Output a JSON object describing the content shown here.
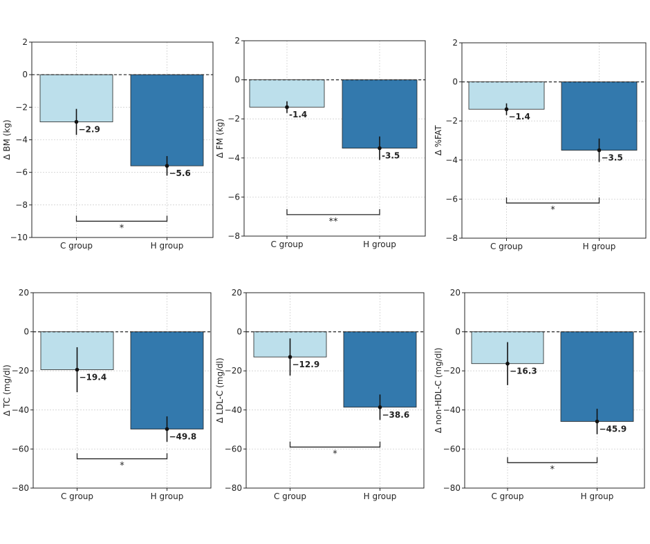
{
  "colors": {
    "c_group": "#bcdfeb",
    "h_group": "#3379ad",
    "axis": "#222222",
    "grid": "#cfcfcf",
    "point": "#111111"
  },
  "chart_data": [
    {
      "type": "bar",
      "categories": [
        "C group",
        "H group"
      ],
      "values": [
        -2.9,
        -5.6
      ],
      "value_labels": [
        "−2.9",
        "−5.6"
      ],
      "errors": [
        0.8,
        0.6
      ],
      "ylabel": "Δ BM (kg)",
      "ylim": [
        -10,
        2
      ],
      "yticks": [
        2,
        0,
        -2,
        -4,
        -6,
        -8,
        -10
      ],
      "ytick_labels": [
        "2",
        "0",
        "−2",
        "−4",
        "−6",
        "−8",
        "−10"
      ],
      "grid": true,
      "significance": {
        "label": "*",
        "level": -9.0
      }
    },
    {
      "type": "bar",
      "categories": [
        "C group",
        "H group"
      ],
      "values": [
        -1.4,
        -3.5
      ],
      "value_labels": [
        "-1.4",
        "-3.5"
      ],
      "errors": [
        0.3,
        0.6
      ],
      "ylabel": "Δ FM (kg)",
      "ylim": [
        -8,
        2
      ],
      "yticks": [
        2,
        0,
        -2,
        -4,
        -6,
        -8
      ],
      "ytick_labels": [
        "2",
        "0",
        "−2",
        "−4",
        "−6",
        "−8"
      ],
      "grid": true,
      "significance": {
        "label": "**",
        "level": -6.9
      }
    },
    {
      "type": "bar",
      "categories": [
        "C group",
        "H group"
      ],
      "values": [
        -1.4,
        -3.5
      ],
      "value_labels": [
        "−1.4",
        "−3.5"
      ],
      "errors": [
        0.3,
        0.6
      ],
      "ylabel": "Δ %FAT",
      "ylim": [
        -8,
        2
      ],
      "yticks": [
        2,
        0,
        -2,
        -4,
        -6,
        -8
      ],
      "ytick_labels": [
        "2",
        "0",
        "−2",
        "−4",
        "−6",
        "−8"
      ],
      "grid": true,
      "significance": {
        "label": "*",
        "level": -6.2
      }
    },
    {
      "type": "bar",
      "categories": [
        "C group",
        "H group"
      ],
      "values": [
        -19.4,
        -49.8
      ],
      "value_labels": [
        "−19.4",
        "−49.8"
      ],
      "errors": [
        11.5,
        6.5
      ],
      "ylabel": "Δ TC (mg/dl)",
      "ylim": [
        -80,
        20
      ],
      "yticks": [
        20,
        0,
        -20,
        -40,
        -60,
        -80
      ],
      "ytick_labels": [
        "20",
        "0",
        "−20",
        "−40",
        "−60",
        "−80"
      ],
      "grid": true,
      "significance": {
        "label": "*",
        "level": -65
      }
    },
    {
      "type": "bar",
      "categories": [
        "C group",
        "H group"
      ],
      "values": [
        -12.9,
        -38.6
      ],
      "value_labels": [
        "−12.9",
        "−38.6"
      ],
      "errors": [
        9.5,
        6.5
      ],
      "ylabel": "Δ LDL-C (mg/dl)",
      "ylim": [
        -80,
        20
      ],
      "yticks": [
        20,
        0,
        -20,
        -40,
        -60,
        -80
      ],
      "ytick_labels": [
        "20",
        "0",
        "−20",
        "−40",
        "−60",
        "−80"
      ],
      "grid": true,
      "significance": {
        "label": "*",
        "level": -59
      }
    },
    {
      "type": "bar",
      "categories": [
        "C group",
        "H group"
      ],
      "values": [
        -16.3,
        -45.9
      ],
      "value_labels": [
        "−16.3",
        "−45.9"
      ],
      "errors": [
        11.0,
        6.5
      ],
      "ylabel": "Δ non-HDL-C (mg/dl)",
      "ylim": [
        -80,
        20
      ],
      "yticks": [
        20,
        0,
        -20,
        -40,
        -60,
        -80
      ],
      "ytick_labels": [
        "20",
        "0",
        "−20",
        "−40",
        "−60",
        "−80"
      ],
      "grid": true,
      "significance": {
        "label": "*",
        "level": -67
      }
    }
  ]
}
